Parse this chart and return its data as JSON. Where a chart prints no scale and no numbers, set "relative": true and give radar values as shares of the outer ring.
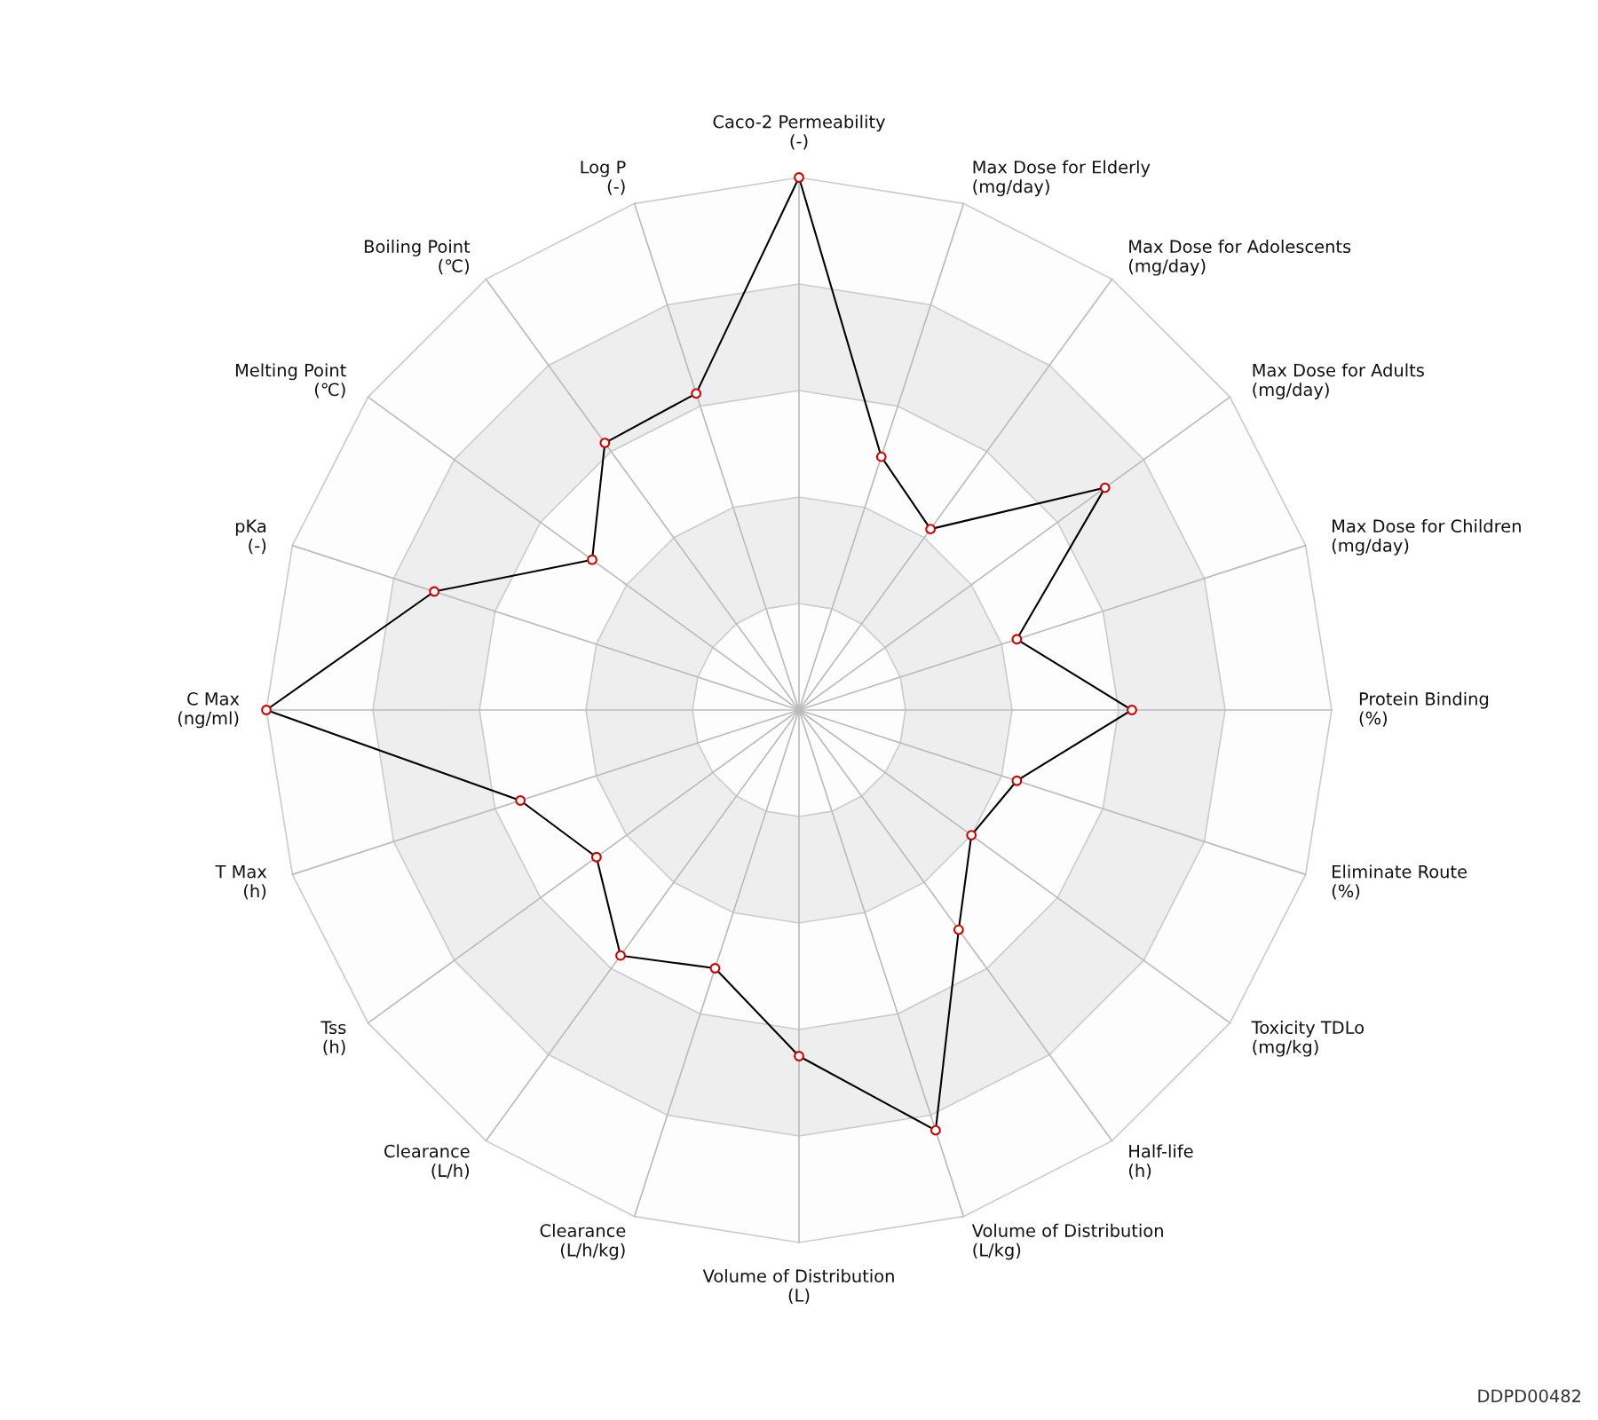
{
  "chart_data": {
    "type": "radar",
    "relative": true,
    "grid": true,
    "marker": "circle",
    "line_style": "solid",
    "categories": [
      "Caco-2 Permeability\n(-)",
      "Max Dose for Elderly\n(mg/day)",
      "Max Dose for Adolescents\n(mg/day)",
      "Max Dose for Adults\n(mg/day)",
      "Max Dose for Children\n(mg/day)",
      "Protein Binding\n(%)",
      "Eliminate Route\n(%)",
      "Toxicity TDLo\n(mg/kg)",
      "Half-life\n(h)",
      "Volume of Distribution\n(L/kg)",
      "Volume of Distribution\n(L)",
      "Clearance\n(L/h/kg)",
      "Clearance\n(L/h)",
      "Tss\n(h)",
      "T Max\n(h)",
      "C Max\n(ng/ml)",
      "pKa\n(-)",
      "Melting Point\n(℃)",
      "Boiling Point\n(℃)",
      "Log P\n(-)"
    ],
    "series": [
      {
        "color": "#000000",
        "values": [
          1.0,
          0.5,
          0.42,
          0.71,
          0.43,
          0.625,
          0.43,
          0.4,
          0.51,
          0.83,
          0.65,
          0.51,
          0.57,
          0.47,
          0.55,
          1.0,
          0.72,
          0.48,
          0.62,
          0.625
        ]
      }
    ],
    "annotations": [
      "DDPD00482"
    ]
  }
}
